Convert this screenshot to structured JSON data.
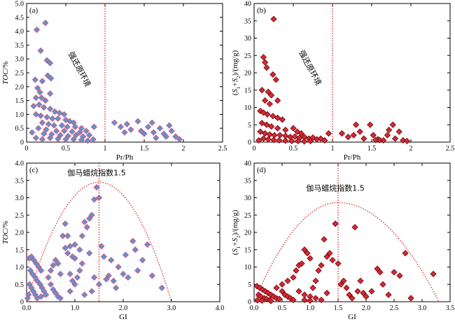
{
  "chart_data": [
    {
      "panel": "(a)",
      "type": "scatter",
      "xlabel": "Pr/Ph",
      "ylabel": "TOC/%",
      "xlim": [
        0,
        2.5
      ],
      "ylim": [
        0,
        5.0
      ],
      "xticks": [
        "0",
        "0.5",
        "1",
        "1.5",
        "2",
        "2.5"
      ],
      "yticks": [
        "0",
        "0.5",
        "1.0",
        "1.5",
        "2.0",
        "2.5",
        "3.0",
        "3.5",
        "4.0",
        "4.5",
        "5.0"
      ],
      "marker": {
        "shape": "diamond",
        "fill": "#4f9ad6",
        "edge": "#e0507a"
      },
      "vline": 1.0,
      "annotation": "强还原环境",
      "points": [
        [
          0.13,
          4.05
        ],
        [
          0.24,
          4.3
        ],
        [
          0.18,
          3.3
        ],
        [
          0.26,
          2.95
        ],
        [
          0.3,
          2.85
        ],
        [
          0.27,
          2.4
        ],
        [
          0.31,
          2.3
        ],
        [
          0.11,
          2.25
        ],
        [
          0.14,
          1.95
        ],
        [
          0.2,
          2.2
        ],
        [
          0.17,
          1.8
        ],
        [
          0.3,
          1.75
        ],
        [
          0.12,
          1.6
        ],
        [
          0.19,
          1.6
        ],
        [
          0.24,
          1.5
        ],
        [
          0.09,
          1.3
        ],
        [
          0.16,
          1.35
        ],
        [
          0.22,
          1.25
        ],
        [
          0.3,
          1.2
        ],
        [
          0.36,
          1.1
        ],
        [
          0.42,
          1.05
        ],
        [
          0.48,
          1.0
        ],
        [
          0.12,
          1.0
        ],
        [
          0.18,
          0.95
        ],
        [
          0.26,
          0.9
        ],
        [
          0.33,
          0.85
        ],
        [
          0.4,
          0.85
        ],
        [
          0.5,
          0.8
        ],
        [
          0.55,
          0.75
        ],
        [
          0.6,
          0.7
        ],
        [
          0.2,
          0.7
        ],
        [
          0.28,
          0.65
        ],
        [
          0.35,
          0.6
        ],
        [
          0.45,
          0.6
        ],
        [
          0.52,
          0.55
        ],
        [
          0.62,
          0.55
        ],
        [
          0.7,
          0.5
        ],
        [
          0.15,
          0.5
        ],
        [
          0.25,
          0.45
        ],
        [
          0.38,
          0.4
        ],
        [
          0.48,
          0.4
        ],
        [
          0.58,
          0.38
        ],
        [
          0.68,
          0.35
        ],
        [
          0.76,
          0.4
        ],
        [
          0.07,
          0.35
        ],
        [
          0.22,
          0.3
        ],
        [
          0.32,
          0.28
        ],
        [
          0.43,
          0.25
        ],
        [
          0.53,
          0.22
        ],
        [
          0.63,
          0.25
        ],
        [
          0.72,
          0.2
        ],
        [
          0.8,
          0.25
        ],
        [
          0.86,
          0.55
        ],
        [
          0.3,
          0.15
        ],
        [
          0.4,
          0.12
        ],
        [
          0.5,
          0.1
        ],
        [
          0.6,
          0.1
        ],
        [
          0.7,
          0.08
        ],
        [
          0.78,
          0.05
        ],
        [
          0.85,
          0.1
        ],
        [
          0.2,
          0.1
        ],
        [
          0.12,
          0.15
        ],
        [
          1.12,
          0.7
        ],
        [
          1.2,
          0.55
        ],
        [
          1.25,
          0.35
        ],
        [
          1.28,
          0.65
        ],
        [
          1.33,
          0.45
        ],
        [
          1.42,
          0.75
        ],
        [
          1.46,
          0.4
        ],
        [
          1.5,
          0.3
        ],
        [
          1.55,
          0.55
        ],
        [
          1.6,
          0.7
        ],
        [
          1.62,
          0.35
        ],
        [
          1.7,
          0.5
        ],
        [
          1.75,
          0.3
        ],
        [
          1.78,
          0.2
        ],
        [
          1.82,
          0.6
        ],
        [
          1.85,
          0.4
        ],
        [
          1.9,
          0.2
        ],
        [
          1.95,
          0.1
        ],
        [
          1.65,
          0.15
        ]
      ]
    },
    {
      "panel": "(b)",
      "type": "scatter",
      "xlabel": "Pr/Ph",
      "ylabel": "(S1+S2)/(mg/g)",
      "xlim": [
        0,
        2.5
      ],
      "ylim": [
        0,
        40
      ],
      "xticks": [
        "0",
        "0.5",
        "1",
        "1.5",
        "2",
        "2.5"
      ],
      "yticks": [
        "0",
        "5",
        "10",
        "15",
        "20",
        "25",
        "30",
        "35",
        "40"
      ],
      "marker": {
        "shape": "diamond",
        "fill": "#d42a35",
        "edge": "#7a0c12"
      },
      "vline": 1.0,
      "annotation": "强还原环境",
      "points": [
        [
          0.25,
          35.5
        ],
        [
          0.12,
          24.5
        ],
        [
          0.14,
          23
        ],
        [
          0.16,
          21.5
        ],
        [
          0.24,
          19.5
        ],
        [
          0.28,
          18
        ],
        [
          0.1,
          15
        ],
        [
          0.18,
          14.5
        ],
        [
          0.22,
          13.5
        ],
        [
          0.3,
          12
        ],
        [
          0.14,
          12
        ],
        [
          0.2,
          11
        ],
        [
          0.08,
          9
        ],
        [
          0.12,
          8.5
        ],
        [
          0.17,
          8
        ],
        [
          0.24,
          7.5
        ],
        [
          0.3,
          7
        ],
        [
          0.36,
          6.5
        ],
        [
          0.1,
          5.5
        ],
        [
          0.16,
          5
        ],
        [
          0.22,
          4.5
        ],
        [
          0.3,
          4
        ],
        [
          0.4,
          3.5
        ],
        [
          0.5,
          4
        ],
        [
          0.55,
          3
        ],
        [
          0.6,
          2.5
        ],
        [
          0.08,
          3
        ],
        [
          0.14,
          2.5
        ],
        [
          0.2,
          2.2
        ],
        [
          0.26,
          2
        ],
        [
          0.33,
          2
        ],
        [
          0.4,
          1.8
        ],
        [
          0.46,
          1.5
        ],
        [
          0.52,
          1.6
        ],
        [
          0.58,
          1.2
        ],
        [
          0.64,
          1.5
        ],
        [
          0.7,
          1
        ],
        [
          0.75,
          1.3
        ],
        [
          0.8,
          0.8
        ],
        [
          0.85,
          1
        ],
        [
          0.9,
          0.5
        ],
        [
          0.12,
          1
        ],
        [
          0.18,
          0.8
        ],
        [
          0.25,
          0.6
        ],
        [
          0.32,
          0.5
        ],
        [
          0.4,
          0.4
        ],
        [
          0.48,
          0.3
        ],
        [
          0.56,
          0.3
        ],
        [
          0.64,
          0.2
        ],
        [
          0.72,
          0.3
        ],
        [
          0.06,
          0.5
        ],
        [
          0.95,
          2.5
        ],
        [
          1.12,
          2.5
        ],
        [
          1.2,
          1.5
        ],
        [
          1.27,
          2
        ],
        [
          1.3,
          5
        ],
        [
          1.35,
          3
        ],
        [
          1.4,
          1
        ],
        [
          1.48,
          5
        ],
        [
          1.52,
          2
        ],
        [
          1.58,
          0.8
        ],
        [
          1.6,
          0.6
        ],
        [
          1.65,
          0.5
        ],
        [
          1.7,
          2
        ],
        [
          1.72,
          3.5
        ],
        [
          1.77,
          5
        ],
        [
          1.8,
          1
        ],
        [
          1.85,
          3
        ],
        [
          1.9,
          0.5
        ],
        [
          1.95,
          0.3
        ],
        [
          1.55,
          0.6
        ]
      ]
    },
    {
      "panel": "(c)",
      "type": "scatter",
      "xlabel": "GI",
      "ylabel": "TOC/%",
      "xlim": [
        0,
        4.0
      ],
      "ylim": [
        0,
        4.0
      ],
      "xticks": [
        "0.0",
        "1.0",
        "2.0",
        "3.0",
        "4.0"
      ],
      "yticks": [
        "0",
        "0.5",
        "1.0",
        "1.5",
        "2.0",
        "2.5",
        "3.0",
        "3.5",
        "4.0"
      ],
      "marker": {
        "shape": "diamond",
        "fill": "#4f9ad6",
        "edge": "#e0507a"
      },
      "vline": 1.5,
      "curve": {
        "x0": 0,
        "x1": 3.0,
        "peak_x": 1.5,
        "peak_y": 3.45
      },
      "annotation": "伽马蜡烷指数1.5",
      "points": [
        [
          0.05,
          1.25
        ],
        [
          0.1,
          1.3
        ],
        [
          0.15,
          1.2
        ],
        [
          0.2,
          1.1
        ],
        [
          0.25,
          1.0
        ],
        [
          0.3,
          0.9
        ],
        [
          0.08,
          0.9
        ],
        [
          0.12,
          0.8
        ],
        [
          0.18,
          0.7
        ],
        [
          0.22,
          0.6
        ],
        [
          0.28,
          0.5
        ],
        [
          0.32,
          0.4
        ],
        [
          0.36,
          0.3
        ],
        [
          0.06,
          0.5
        ],
        [
          0.1,
          0.4
        ],
        [
          0.14,
          0.3
        ],
        [
          0.18,
          0.2
        ],
        [
          0.22,
          0.1
        ],
        [
          0.3,
          0.15
        ],
        [
          0.4,
          0.2
        ],
        [
          0.45,
          0.7
        ],
        [
          0.5,
          0.9
        ],
        [
          0.55,
          1.05
        ],
        [
          0.6,
          1.2
        ],
        [
          0.65,
          1.1
        ],
        [
          0.7,
          0.8
        ],
        [
          0.5,
          0.5
        ],
        [
          0.55,
          0.35
        ],
        [
          0.6,
          0.25
        ],
        [
          0.65,
          0.15
        ],
        [
          0.7,
          0.1
        ],
        [
          0.8,
          1.55
        ],
        [
          0.85,
          1.4
        ],
        [
          0.9,
          1.6
        ],
        [
          0.95,
          1.3
        ],
        [
          1.0,
          1.25
        ],
        [
          0.75,
          1.9
        ],
        [
          0.8,
          2.25
        ],
        [
          0.85,
          1.9
        ],
        [
          0.9,
          0.8
        ],
        [
          0.95,
          0.6
        ],
        [
          1.0,
          0.5
        ],
        [
          1.05,
          0.7
        ],
        [
          1.1,
          0.9
        ],
        [
          1.15,
          1.1
        ],
        [
          1.0,
          1.65
        ],
        [
          1.1,
          1.5
        ],
        [
          1.15,
          1.9
        ],
        [
          1.2,
          2.3
        ],
        [
          1.25,
          2.15
        ],
        [
          1.3,
          2.4
        ],
        [
          1.35,
          2.5
        ],
        [
          1.3,
          1.4
        ],
        [
          1.35,
          0.3
        ],
        [
          1.4,
          2.95
        ],
        [
          1.45,
          3.3
        ],
        [
          1.5,
          3.0
        ],
        [
          1.4,
          0.7
        ],
        [
          1.5,
          0.5
        ],
        [
          1.55,
          1.6
        ],
        [
          1.6,
          1.3
        ],
        [
          1.65,
          0.65
        ],
        [
          1.7,
          0.75
        ],
        [
          1.75,
          1.2
        ],
        [
          1.8,
          0.6
        ],
        [
          1.85,
          0.4
        ],
        [
          1.9,
          1.0
        ],
        [
          2.0,
          0.8
        ],
        [
          2.05,
          1.35
        ],
        [
          2.1,
          0.7
        ],
        [
          2.2,
          1.75
        ],
        [
          2.25,
          1.5
        ],
        [
          2.3,
          0.9
        ],
        [
          2.4,
          1.2
        ],
        [
          2.5,
          1.65
        ],
        [
          2.6,
          0.75
        ],
        [
          2.8,
          0.4
        ],
        [
          0.02,
          0.1
        ],
        [
          0.04,
          0.2
        ],
        [
          1.2,
          0.2
        ],
        [
          0.9,
          0.3
        ]
      ]
    },
    {
      "panel": "(d)",
      "type": "scatter",
      "xlabel": "GI",
      "ylabel": "(S1+S2)/(mg/g)",
      "xlim": [
        0,
        3.5
      ],
      "ylim": [
        0,
        40
      ],
      "xticks": [
        "0.0",
        "0.5",
        "1.0",
        "1.5",
        "2.0",
        "2.5",
        "3.0",
        "3.5"
      ],
      "yticks": [
        "0",
        "5",
        "10",
        "15",
        "20",
        "25",
        "30",
        "35",
        "40"
      ],
      "marker": {
        "shape": "diamond",
        "fill": "#d42a35",
        "edge": "#7a0c12"
      },
      "vline": 1.5,
      "curve": {
        "x0": 0,
        "x1": 3.3,
        "peak_x": 1.5,
        "peak_y": 28.6
      },
      "annotation": "伽马蜡烷指数1.5",
      "points": [
        [
          0.05,
          4.5
        ],
        [
          0.1,
          4
        ],
        [
          0.15,
          3.5
        ],
        [
          0.2,
          3
        ],
        [
          0.25,
          2.5
        ],
        [
          0.08,
          2
        ],
        [
          0.12,
          1.5
        ],
        [
          0.18,
          1
        ],
        [
          0.22,
          0.8
        ],
        [
          0.28,
          0.5
        ],
        [
          0.06,
          0.4
        ],
        [
          0.14,
          0.3
        ],
        [
          0.3,
          2
        ],
        [
          0.35,
          1.5
        ],
        [
          0.4,
          1
        ],
        [
          0.45,
          0.8
        ],
        [
          0.5,
          3
        ],
        [
          0.55,
          2
        ],
        [
          0.6,
          1.5
        ],
        [
          0.65,
          1
        ],
        [
          0.7,
          0.5
        ],
        [
          0.4,
          4
        ],
        [
          0.5,
          5
        ],
        [
          0.6,
          6
        ],
        [
          0.7,
          7
        ],
        [
          0.75,
          9
        ],
        [
          0.8,
          10.5
        ],
        [
          0.85,
          11
        ],
        [
          0.9,
          15
        ],
        [
          0.95,
          14
        ],
        [
          1.0,
          12.5
        ],
        [
          0.8,
          3
        ],
        [
          0.9,
          2
        ],
        [
          1.0,
          1.5
        ],
        [
          1.05,
          4
        ],
        [
          1.1,
          6
        ],
        [
          1.15,
          9
        ],
        [
          1.2,
          10.5
        ],
        [
          1.25,
          18
        ],
        [
          1.3,
          13
        ],
        [
          1.35,
          14
        ],
        [
          1.4,
          12
        ],
        [
          1.45,
          22.5
        ],
        [
          1.5,
          11
        ],
        [
          1.55,
          5
        ],
        [
          1.6,
          6
        ],
        [
          1.65,
          4
        ],
        [
          1.7,
          2
        ],
        [
          1.75,
          1
        ],
        [
          1.8,
          21.5
        ],
        [
          1.85,
          3
        ],
        [
          1.9,
          6
        ],
        [
          1.95,
          2.5
        ],
        [
          2.0,
          1.5
        ],
        [
          2.1,
          3
        ],
        [
          2.2,
          9.5
        ],
        [
          2.25,
          8.5
        ],
        [
          2.3,
          5
        ],
        [
          2.4,
          2
        ],
        [
          2.5,
          8.5
        ],
        [
          2.6,
          7.5
        ],
        [
          2.7,
          14
        ],
        [
          2.8,
          1
        ],
        [
          3.2,
          8
        ],
        [
          1.1,
          1
        ],
        [
          1.2,
          0.5
        ],
        [
          1.3,
          2.5
        ],
        [
          0.3,
          0.2
        ],
        [
          0.9,
          0.5
        ],
        [
          1.0,
          0.3
        ]
      ]
    }
  ]
}
